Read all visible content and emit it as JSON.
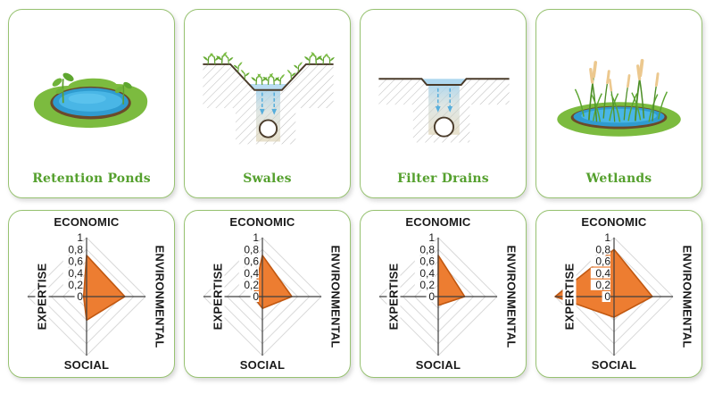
{
  "page": {
    "background": "#FFFFFF"
  },
  "colors": {
    "card_border": "#97C271",
    "card_background": "#FFFFFF",
    "title_green": "#55A02E",
    "radar_fill": "#ED7D31",
    "radar_stroke": "#C15811",
    "radar_grid": "#D9D9D9",
    "radar_axis_line": "#3F3F3F",
    "label_text": "#1A1A1A"
  },
  "cards": [
    {
      "title": "Retention Ponds",
      "illustration": "retention-ponds-illustration"
    },
    {
      "title": "Swales",
      "illustration": "swales-illustration"
    },
    {
      "title": "Filter Drains",
      "illustration": "filter-drains-illustration"
    },
    {
      "title": "Wetlands",
      "illustration": "wetlands-illustration"
    }
  ],
  "radar_axis_labels": {
    "top": "ECONOMIC",
    "right": "ENVIRONMENTAL",
    "bottom": "SOCIAL",
    "left": "EXPERTISE"
  },
  "chart_data": [
    {
      "type": "radar",
      "title": "Retention Ponds",
      "categories": [
        "ECONOMIC",
        "ENVIRONMENTAL",
        "SOCIAL",
        "EXPERTISE"
      ],
      "values": [
        0.7,
        0.65,
        0.4,
        0.05
      ],
      "rlim": [
        0,
        1
      ],
      "tick_step": 0.2,
      "tick_labels": [
        "0",
        "0,2",
        "0,4",
        "0,6",
        "0,8",
        "1"
      ],
      "grid": true,
      "legend": "none",
      "fill": "#ED7D31",
      "stroke": "#C15811"
    },
    {
      "type": "radar",
      "title": "Swales",
      "categories": [
        "ECONOMIC",
        "ENVIRONMENTAL",
        "SOCIAL",
        "EXPERTISE"
      ],
      "values": [
        0.7,
        0.5,
        0.2,
        0.15
      ],
      "rlim": [
        0,
        1
      ],
      "tick_step": 0.2,
      "tick_labels": [
        "0",
        "0,2",
        "0,4",
        "0,6",
        "0,8",
        "1"
      ],
      "grid": true,
      "legend": "none",
      "fill": "#ED7D31",
      "stroke": "#C15811"
    },
    {
      "type": "radar",
      "title": "Filter Drains",
      "categories": [
        "ECONOMIC",
        "ENVIRONMENTAL",
        "SOCIAL",
        "EXPERTISE"
      ],
      "values": [
        0.7,
        0.45,
        0.15,
        0
      ],
      "rlim": [
        0,
        1
      ],
      "tick_step": 0.2,
      "tick_labels": [
        "0",
        "0,2",
        "0,4",
        "0,6",
        "0,8",
        "1"
      ],
      "grid": true,
      "legend": "none",
      "fill": "#ED7D31",
      "stroke": "#C15811"
    },
    {
      "type": "radar",
      "title": "Wetlands",
      "categories": [
        "ECONOMIC",
        "ENVIRONMENTAL",
        "SOCIAL",
        "EXPERTISE"
      ],
      "values": [
        0.8,
        0.65,
        0.35,
        1
      ],
      "rlim": [
        0,
        1
      ],
      "tick_step": 0.2,
      "tick_labels": [
        "0",
        "0,2",
        "0,4",
        "0,6",
        "0,8",
        "1"
      ],
      "grid": true,
      "legend": "none",
      "fill": "#ED7D31",
      "stroke": "#C15811"
    }
  ]
}
